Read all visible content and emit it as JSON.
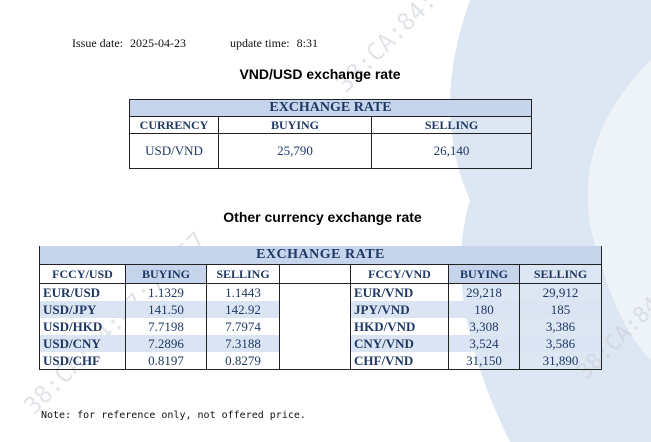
{
  "header": {
    "issue_label": "Issue date:",
    "issue_date": "2025-04-23",
    "update_label": "update time:",
    "update_time": "8:31"
  },
  "usd_section": {
    "title": "VND/USD exchange rate",
    "caption": "EXCHANGE RATE",
    "columns": [
      "CURRENCY",
      "BUYING",
      "SELLING"
    ],
    "row": {
      "currency": "USD/VND",
      "buying": "25,790",
      "selling": "26,140"
    }
  },
  "other_section": {
    "title": "Other currency exchange rate",
    "caption": "EXCHANGE  RATE",
    "left_columns": [
      "FCCY/USD",
      "BUYING",
      "SELLING"
    ],
    "right_columns": [
      "FCCY/VND",
      "BUYING",
      "SELLING"
    ],
    "rows": [
      {
        "l_pair": "EUR/USD",
        "l_buy": "1.1329",
        "l_sell": "1.1443",
        "r_pair": "EUR/VND",
        "r_buy": "29,218",
        "r_sell": "29,912"
      },
      {
        "l_pair": "USD/JPY",
        "l_buy": "141.50",
        "l_sell": "142.92",
        "r_pair": "JPY/VND",
        "r_buy": "180",
        "r_sell": "185"
      },
      {
        "l_pair": "USD/HKD",
        "l_buy": "7.7198",
        "l_sell": "7.7974",
        "r_pair": "HKD/VND",
        "r_buy": "3,308",
        "r_sell": "3,386"
      },
      {
        "l_pair": "USD/CNY",
        "l_buy": "7.2896",
        "l_sell": "7.3188",
        "r_pair": "CNY/VND",
        "r_buy": "3,524",
        "r_sell": "3,586"
      },
      {
        "l_pair": "USD/CHF",
        "l_buy": "0.8197",
        "l_sell": "0.8279",
        "r_pair": "CHF/VND",
        "r_buy": "31,150",
        "r_sell": "31,890"
      }
    ]
  },
  "note": "Note: for reference only, not offered price.",
  "watermark": "38:CA:84:47:71:57",
  "colors": {
    "band": "#c6d5ec",
    "text": "#1f3864",
    "background_shape": "#dde6f3"
  }
}
